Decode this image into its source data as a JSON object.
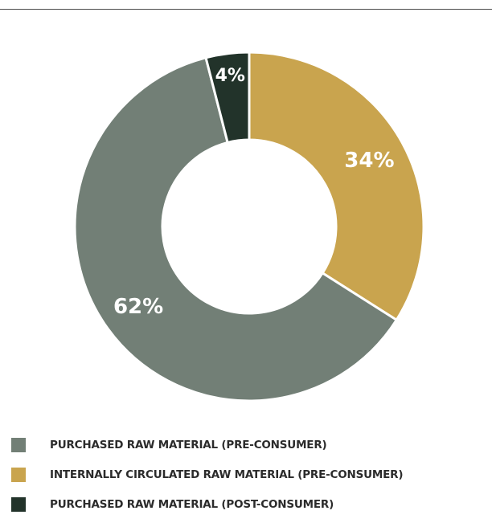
{
  "chart_data": {
    "type": "donut",
    "title": "",
    "categories": [
      "INTERNALLY CIRCULATED RAW MATERIAL  (PRE-CONSUMER)",
      "PURCHASED RAW MATERIAL  (PRE-CONSUMER)",
      "PURCHASED RAW MATERIAL  (POST-CONSUMER)"
    ],
    "values": [
      34,
      62,
      4
    ],
    "unit": "%",
    "data_labels": [
      "34%",
      "62%",
      "4%"
    ],
    "colors": [
      "#c9a44e",
      "#727f76",
      "#22332a"
    ],
    "legend_placement": "bottom-left"
  },
  "legend": {
    "items": [
      {
        "label": "PURCHASED RAW MATERIAL  (PRE-CONSUMER)",
        "color": "#727f76"
      },
      {
        "label": "INTERNALLY CIRCULATED RAW MATERIAL  (PRE-CONSUMER)",
        "color": "#c9a44e"
      },
      {
        "label": "PURCHASED RAW MATERIAL  (POST-CONSUMER)",
        "color": "#22332a"
      }
    ]
  }
}
